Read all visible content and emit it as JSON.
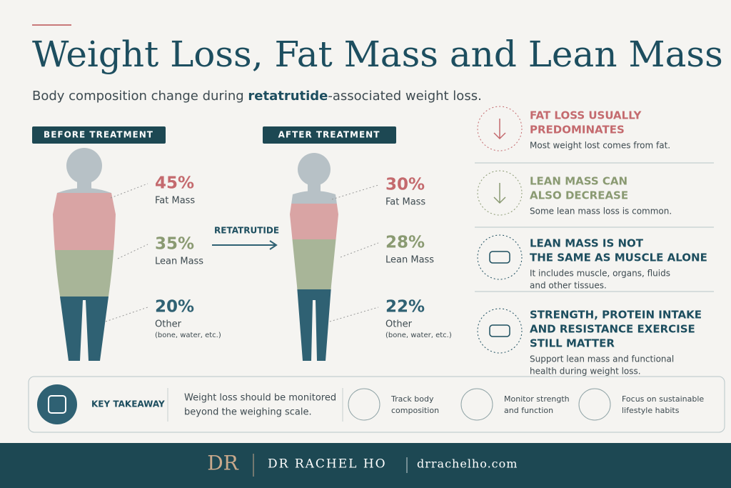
{
  "header": {
    "title": "Weight Loss, Fat Mass and Lean Mass",
    "subtitle": {
      "before": "Body composition change during ",
      "emphasis": "retatrutide",
      "after": "-associated weight loss."
    }
  },
  "before": {
    "badge": "BEFORE TREATMENT",
    "stats": [
      {
        "pct": "45%",
        "label": "Fat Mass"
      },
      {
        "pct": "35%",
        "label": "Lean Mass"
      },
      {
        "pct": "20%",
        "label": "Other",
        "note": "(bone, water, etc.)"
      }
    ]
  },
  "arrow_label": "RETATRUTIDE",
  "after": {
    "badge": "AFTER TREATMENT",
    "stats": [
      {
        "pct": "30%",
        "label": "Fat Mass"
      },
      {
        "pct": "28%",
        "label": "Lean Mass"
      },
      {
        "pct": "22%",
        "label": "Other",
        "note": "(bone, water, etc.)"
      }
    ]
  },
  "points": [
    {
      "title_lines": [
        "FAT LOSS USUALLY",
        "PREDOMINATES"
      ],
      "description_lines": [
        "Most weight lost comes from fat."
      ]
    },
    {
      "title_lines": [
        "LEAN MASS CAN",
        "ALSO DECREASE"
      ],
      "description_lines": [
        "Some lean mass loss is common."
      ]
    },
    {
      "title_lines": [
        "LEAN MASS IS NOT",
        "THE SAME AS MUSCLE ALONE"
      ],
      "description_lines": [
        "It includes muscle, organs, fluids",
        "and other tissues."
      ]
    },
    {
      "title_lines": [
        "STRENGTH, PROTEIN INTAKE",
        "AND RESISTANCE EXERCISE",
        "STILL MATTER"
      ],
      "description_lines": [
        "Support lean mass and functional",
        "health during weight loss."
      ]
    }
  ],
  "takeaway": {
    "label": "KEY TAKEAWAY",
    "text_lines": [
      "Weight loss should be monitored",
      "beyond the weighing scale."
    ],
    "items": [
      {
        "lines": [
          "Track body",
          "composition"
        ]
      },
      {
        "lines": [
          "Monitor strength",
          "and function"
        ]
      },
      {
        "lines": [
          "Focus on sustainable",
          "lifestyle habits"
        ]
      }
    ]
  },
  "footer": {
    "monogram": "DR",
    "name": "DR RACHEL HO",
    "url": "drrachelho.com"
  }
}
